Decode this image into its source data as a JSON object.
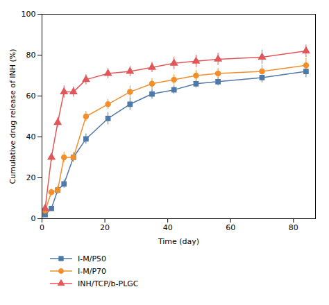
{
  "chart_data": {
    "type": "line",
    "xlabel": "Time (day)",
    "ylabel": "Cumulative drug release of INH (%)",
    "x": [
      1,
      3,
      5,
      7,
      10,
      14,
      21,
      28,
      35,
      42,
      49,
      56,
      70,
      84
    ],
    "series": [
      {
        "name": "I-M/P50",
        "marker": "square",
        "values": [
          2,
          5,
          14,
          17,
          30,
          39,
          49,
          56,
          61,
          63,
          66,
          67,
          69,
          72
        ],
        "errors": [
          0.5,
          1.0,
          2.0,
          2.0,
          2.0,
          2.5,
          3.0,
          3.0,
          2.5,
          2.0,
          2.0,
          2.0,
          2.5,
          3.0
        ]
      },
      {
        "name": "I-M/P70",
        "marker": "circle",
        "values": [
          4,
          13,
          14,
          30,
          30,
          50,
          56,
          62,
          66,
          68,
          70,
          71,
          72,
          75
        ],
        "errors": [
          0.5,
          1.5,
          1.5,
          2.5,
          2.5,
          2.5,
          2.5,
          3.0,
          2.5,
          2.5,
          2.5,
          2.5,
          3.0,
          3.5
        ]
      },
      {
        "name": "INH/TCP/b-PLGC",
        "marker": "triangle",
        "values": [
          5,
          30,
          47,
          62,
          62,
          68,
          71,
          72,
          74,
          76,
          77,
          78,
          79,
          82
        ],
        "errors": [
          0.5,
          2.0,
          2.5,
          3.0,
          2.5,
          2.5,
          2.5,
          2.5,
          2.5,
          3.0,
          3.0,
          3.0,
          3.5,
          3.0
        ]
      }
    ],
    "xlim": [
      0,
      87
    ],
    "ylim": [
      0,
      100
    ],
    "xticks": [
      0,
      20,
      40,
      60,
      80
    ],
    "yticks": [
      0,
      20,
      40,
      60,
      80,
      100
    ],
    "grid": false,
    "legend": "bottom"
  }
}
